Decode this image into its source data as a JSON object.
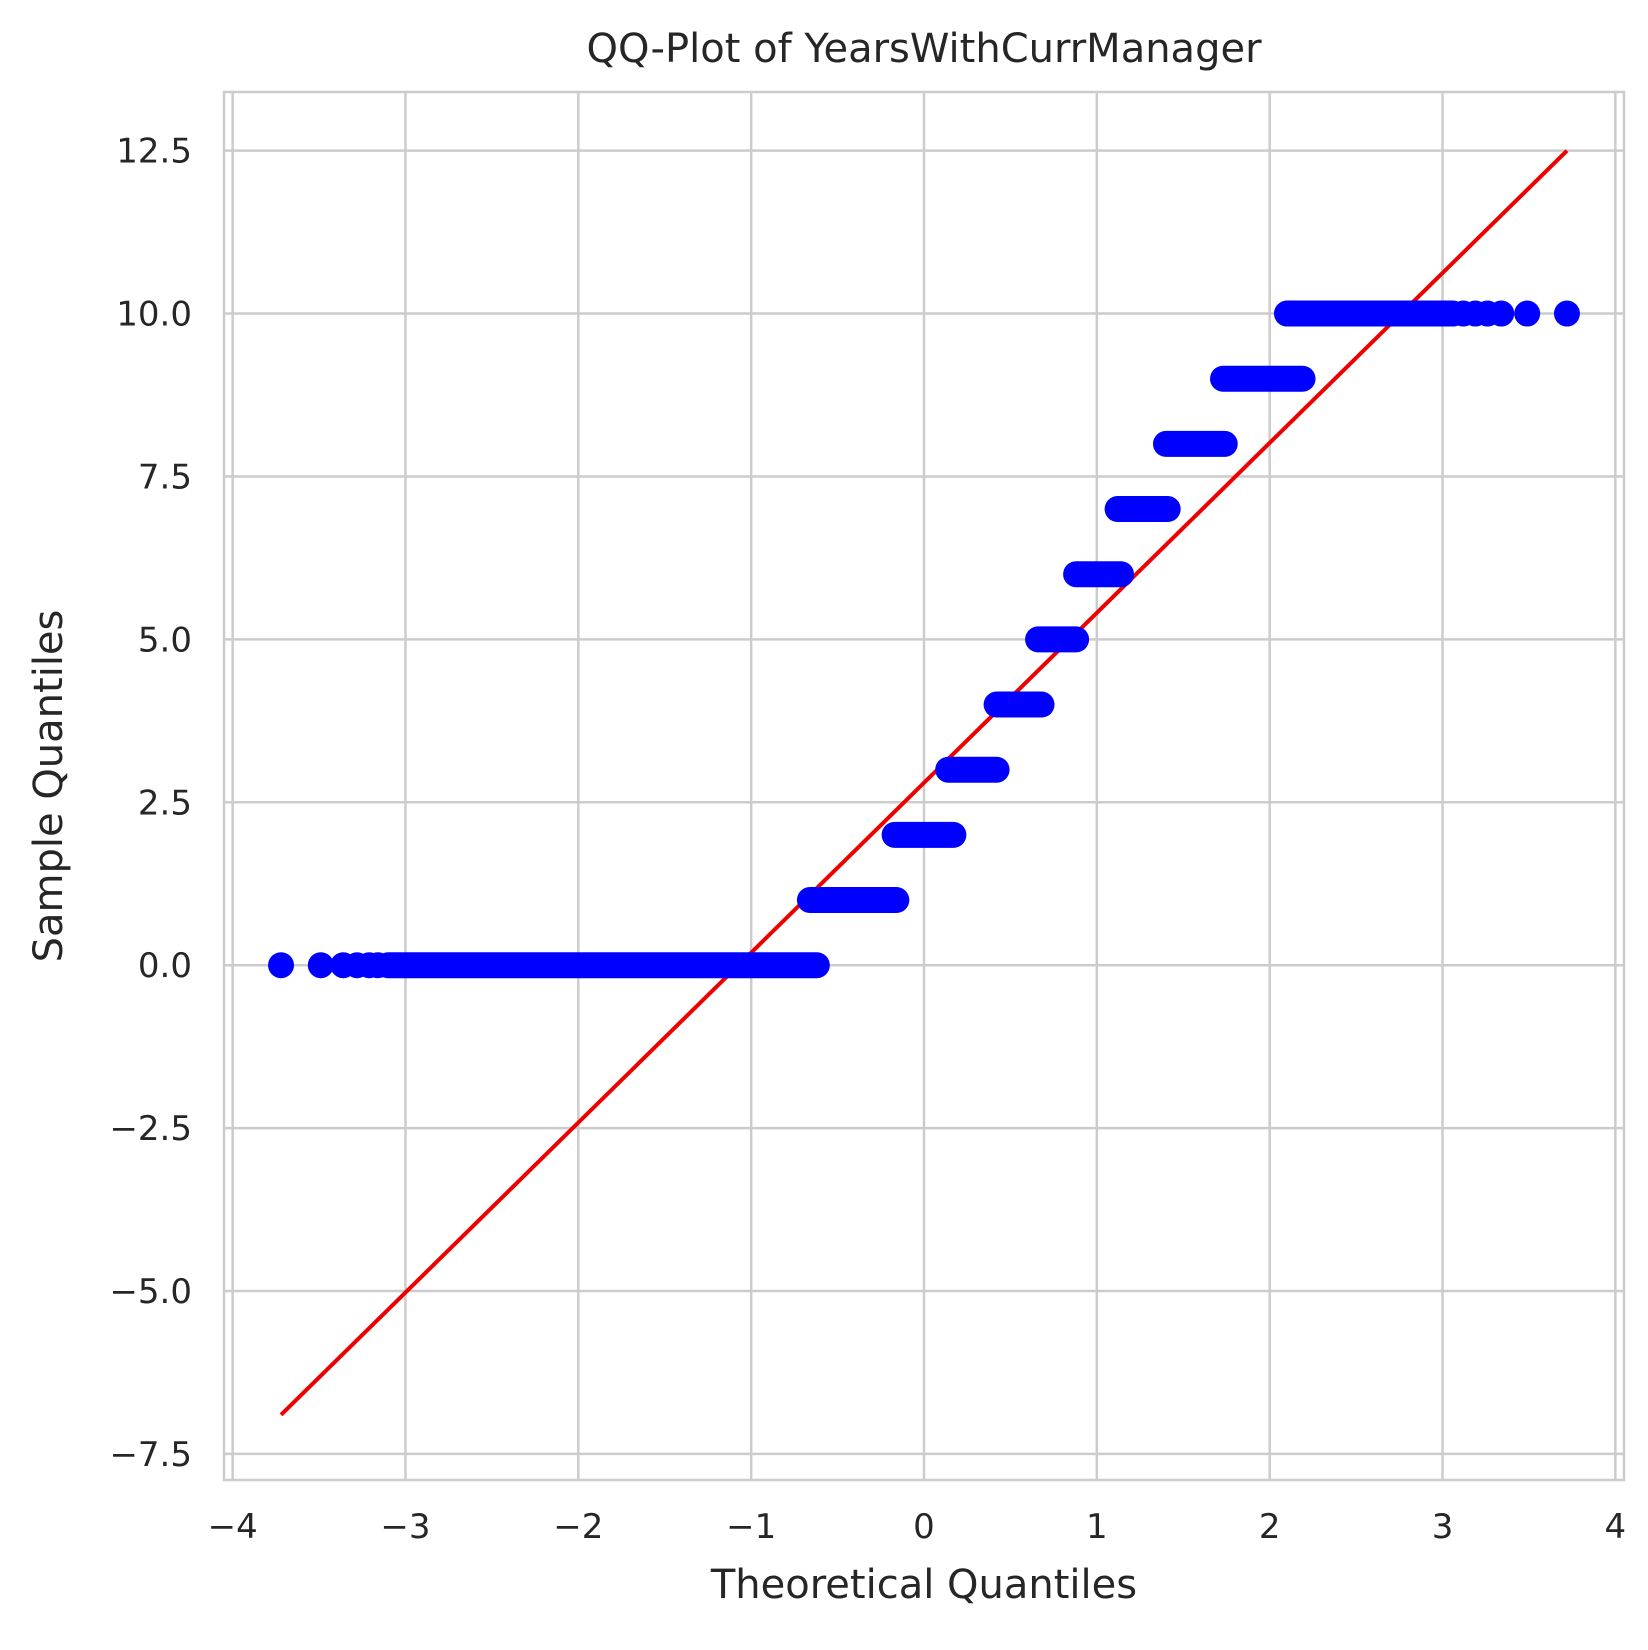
{
  "chart_data": {
    "type": "scatter",
    "title": "QQ-Plot of YearsWithCurrManager",
    "xlabel": "Theoretical Quantiles",
    "ylabel": "Sample Quantiles",
    "xlim": [
      -4.05,
      4.05
    ],
    "ylim": [
      -7.9,
      13.4
    ],
    "grid": true,
    "x_ticks": [
      -4,
      -3,
      -2,
      -1,
      0,
      1,
      2,
      3,
      4
    ],
    "x_tick_labels": [
      "−4",
      "−3",
      "−2",
      "−1",
      "0",
      "1",
      "2",
      "3",
      "4"
    ],
    "y_ticks": [
      -7.5,
      -5.0,
      -2.5,
      0.0,
      2.5,
      5.0,
      7.5,
      10.0,
      12.5
    ],
    "y_tick_labels": [
      "−7.5",
      "−5.0",
      "−2.5",
      "0.0",
      "2.5",
      "5.0",
      "7.5",
      "10.0",
      "12.5"
    ],
    "series": [
      {
        "kind": "points",
        "color": "#0000ff",
        "runs": [
          {
            "y": 0,
            "x_start": -3.1,
            "x_end": -0.62,
            "extra_x": [
              -3.72,
              -3.49,
              -3.36,
              -3.28,
              -3.21,
              -3.16
            ]
          },
          {
            "y": 1,
            "x_start": -0.66,
            "x_end": -0.16,
            "extra_x": []
          },
          {
            "y": 2,
            "x_start": -0.17,
            "x_end": 0.17,
            "extra_x": []
          },
          {
            "y": 3,
            "x_start": 0.14,
            "x_end": 0.42,
            "extra_x": []
          },
          {
            "y": 4,
            "x_start": 0.42,
            "x_end": 0.68,
            "extra_x": []
          },
          {
            "y": 5,
            "x_start": 0.66,
            "x_end": 0.88,
            "extra_x": []
          },
          {
            "y": 6,
            "x_start": 0.88,
            "x_end": 1.14,
            "extra_x": []
          },
          {
            "y": 7,
            "x_start": 1.12,
            "x_end": 1.41,
            "extra_x": []
          },
          {
            "y": 8,
            "x_start": 1.4,
            "x_end": 1.74,
            "extra_x": []
          },
          {
            "y": 9,
            "x_start": 1.73,
            "x_end": 2.19,
            "extra_x": []
          },
          {
            "y": 10,
            "x_start": 2.1,
            "x_end": 3.06,
            "extra_x": [
              3.12,
              3.19,
              3.26,
              3.34,
              3.49,
              3.72
            ]
          }
        ]
      },
      {
        "kind": "reference-line",
        "color": "#ee0000",
        "x": [
          -3.72,
          3.72
        ],
        "y": [
          -6.9,
          12.5
        ]
      }
    ]
  }
}
